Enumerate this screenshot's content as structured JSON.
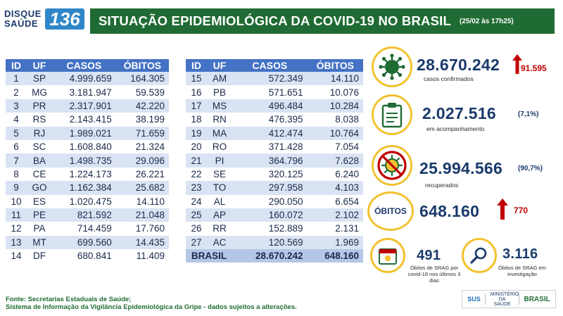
{
  "logo": {
    "line1": "DISQUE",
    "line2": "SAÚDE",
    "number": "136"
  },
  "banner": {
    "title": "SITUAÇÃO EPIDEMIOLÓGICA DA COVID-19 NO BRASIL",
    "date": "(25/02 às 17h25)"
  },
  "table_headers": {
    "id": "ID",
    "uf": "UF",
    "casos": "CASOS",
    "obitos": "ÓBITOS"
  },
  "table_left": [
    [
      "1",
      "SP",
      "4.999.659",
      "164.305"
    ],
    [
      "2",
      "MG",
      "3.181.947",
      "59.539"
    ],
    [
      "3",
      "PR",
      "2.317.901",
      "42.220"
    ],
    [
      "4",
      "RS",
      "2.143.415",
      "38.199"
    ],
    [
      "5",
      "RJ",
      "1.989.021",
      "71.659"
    ],
    [
      "6",
      "SC",
      "1.608.840",
      "21.324"
    ],
    [
      "7",
      "BA",
      "1.498.735",
      "29.096"
    ],
    [
      "8",
      "CE",
      "1.224.173",
      "26.221"
    ],
    [
      "9",
      "GO",
      "1.162.384",
      "25.682"
    ],
    [
      "10",
      "ES",
      "1.020.475",
      "14.110"
    ],
    [
      "11",
      "PE",
      "821.592",
      "21.048"
    ],
    [
      "12",
      "PA",
      "714.459",
      "17.760"
    ],
    [
      "13",
      "MT",
      "699.560",
      "14.435"
    ],
    [
      "14",
      "DF",
      "680.841",
      "11.409"
    ]
  ],
  "table_right": [
    [
      "15",
      "AM",
      "572.349",
      "14.110"
    ],
    [
      "16",
      "PB",
      "571.651",
      "10.076"
    ],
    [
      "17",
      "MS",
      "496.484",
      "10.284"
    ],
    [
      "18",
      "RN",
      "476.395",
      "8.038"
    ],
    [
      "19",
      "MA",
      "412.474",
      "10.764"
    ],
    [
      "20",
      "RO",
      "371.428",
      "7.054"
    ],
    [
      "21",
      "PI",
      "364.796",
      "7.628"
    ],
    [
      "22",
      "SE",
      "320.125",
      "6.240"
    ],
    [
      "23",
      "TO",
      "297.958",
      "4.103"
    ],
    [
      "24",
      "AL",
      "290.050",
      "6.654"
    ],
    [
      "25",
      "AP",
      "160.072",
      "2.102"
    ],
    [
      "26",
      "RR",
      "152.889",
      "2.131"
    ],
    [
      "27",
      "AC",
      "120.569",
      "1.969"
    ]
  ],
  "total": {
    "label": "BRASIL",
    "casos": "28.670.242",
    "obitos": "648.160"
  },
  "stats": {
    "confirmados": {
      "value": "28.670.242",
      "delta": "91.595",
      "label": "casos confirmados"
    },
    "acompanhamento": {
      "value": "2.027.516",
      "pct": "(7,1%)",
      "label": "em acompanhamento"
    },
    "recuperados": {
      "value": "25.994.566",
      "pct": "(90,7%)",
      "label": "recuperados"
    },
    "obitos": {
      "badge": "ÓBITOS",
      "value": "648.160",
      "delta": "770"
    },
    "srag_3dias": {
      "value": "491",
      "label": "Óbitos de SRAG por covid-19 nos últimos 3 dias"
    },
    "srag_investigacao": {
      "value": "3.116",
      "label": "Óbitos de SRAG em investigação"
    }
  },
  "footer": {
    "line1": "Fonte: Secretarias Estaduais de Saúde;",
    "line2": "Sistema de Informação da Vigilância Epidemiológica da Gripe - dados sujeitos a alterações."
  },
  "footer_logos": {
    "sus": "SUS",
    "ministerio": "MINISTÉRIO DA SAÚDE",
    "brasil": "BRASIL"
  },
  "colors": {
    "banner": "#1f6b33",
    "header": "#4472c4",
    "accent": "#f2c230",
    "alert": "#c00000"
  }
}
